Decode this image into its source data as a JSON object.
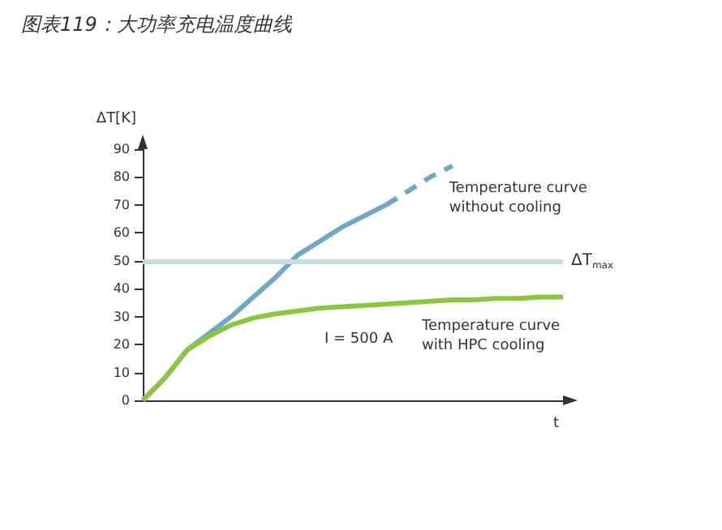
{
  "chart_data": {
    "type": "line",
    "title": "图表119：大功率充电温度曲线",
    "xlabel": "t",
    "ylabel": "ΔT[K]",
    "categories": [
      null,
      null,
      null,
      null,
      null,
      null,
      null,
      null,
      null,
      null,
      null,
      null,
      null,
      null,
      null,
      null,
      null,
      null,
      null,
      null
    ],
    "series": [
      {
        "color": "#6fa8c4",
        "line_style": "solid",
        "values": [
          0,
          8,
          18,
          24,
          30,
          37,
          44,
          52,
          57,
          62,
          66,
          70,
          null,
          null,
          null,
          null,
          null,
          null,
          null,
          null
        ]
      },
      {
        "name": "Temperature curve without cooling",
        "color": "#6fa8c4",
        "line_style": "dashed",
        "values": [
          null,
          null,
          null,
          null,
          null,
          null,
          null,
          null,
          null,
          null,
          null,
          70,
          75,
          80,
          84,
          null,
          null,
          null,
          null,
          null
        ]
      },
      {
        "name": "Temperature curve with HPC cooling",
        "color": "#8cc63f",
        "line_style": "solid",
        "values": [
          0,
          8,
          18,
          23,
          27,
          29.5,
          31,
          32,
          33,
          33.5,
          34,
          34.5,
          35,
          35.5,
          36,
          36,
          36.5,
          36.5,
          37,
          37
        ]
      }
    ],
    "ylim": [
      0,
      90
    ],
    "yticks": [
      0,
      10,
      20,
      30,
      40,
      50,
      60,
      70,
      80,
      90
    ],
    "grid": false,
    "legend": false,
    "marker": "none",
    "ref_lines": [
      {
        "axis": "y",
        "value": 50,
        "label": "ΔT$_{max}$",
        "color": "#c9dce6",
        "line_style": "solid"
      }
    ],
    "annotations": [
      "I = 500 A"
    ]
  }
}
